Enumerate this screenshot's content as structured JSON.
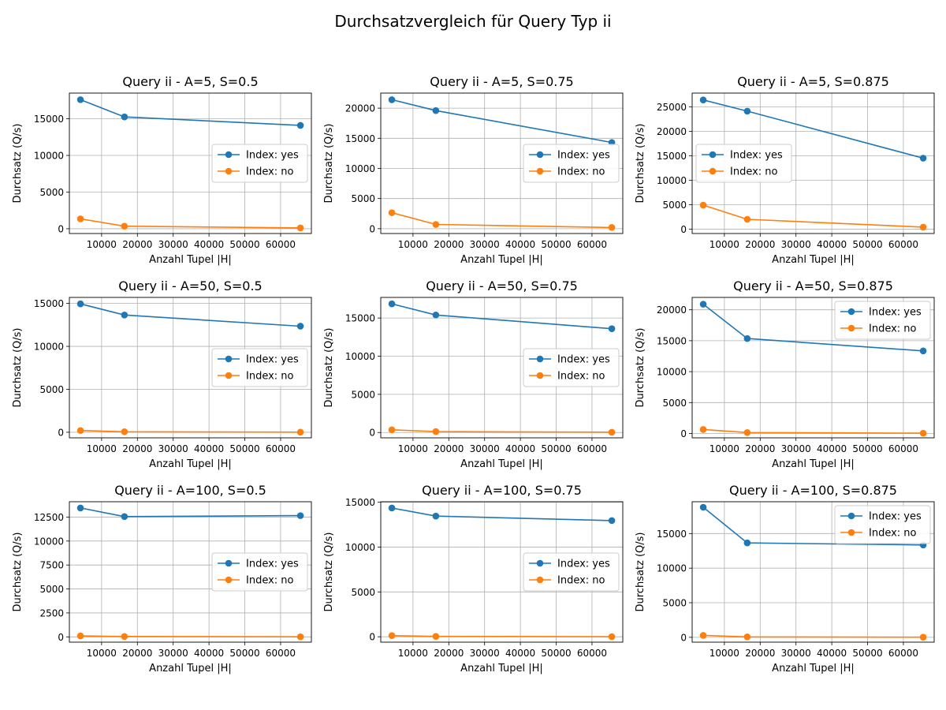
{
  "figure": {
    "title": "Durchsatzvergleich für Query Typ ii"
  },
  "colors": {
    "index_yes": "#1f77b4",
    "index_no": "#ff7f0e",
    "grid": "#b0b0b0"
  },
  "chart_data": [
    {
      "type": "line",
      "title": "Query ii - A=5, S=0.5",
      "xlabel": "Anzahl Tupel |H|",
      "ylabel": "Durchsatz (Q/s)",
      "x": [
        4096,
        16384,
        65536
      ],
      "xlim": [
        1000,
        68600
      ],
      "ylim": [
        -650,
        18500
      ],
      "xticks": [
        10000,
        20000,
        30000,
        40000,
        50000,
        60000
      ],
      "yticks": [
        0,
        5000,
        10000,
        15000
      ],
      "legend": "center-right",
      "grid": true,
      "series": [
        {
          "name": "Index: yes",
          "values": [
            17600,
            15250,
            14100
          ]
        },
        {
          "name": "Index: no",
          "values": [
            1350,
            350,
            110
          ]
        }
      ]
    },
    {
      "type": "line",
      "title": "Query ii - A=5, S=0.75",
      "xlabel": "Anzahl Tupel |H|",
      "ylabel": "Durchsatz (Q/s)",
      "x": [
        4096,
        16384,
        65536
      ],
      "xlim": [
        1000,
        68600
      ],
      "ylim": [
        -800,
        22500
      ],
      "xticks": [
        10000,
        20000,
        30000,
        40000,
        50000,
        60000
      ],
      "yticks": [
        0,
        5000,
        10000,
        15000,
        20000
      ],
      "legend": "center-right",
      "grid": true,
      "series": [
        {
          "name": "Index: yes",
          "values": [
            21400,
            19600,
            14300
          ]
        },
        {
          "name": "Index: no",
          "values": [
            2650,
            700,
            200
          ]
        }
      ]
    },
    {
      "type": "line",
      "title": "Query ii - A=5, S=0.875",
      "xlabel": "Anzahl Tupel |H|",
      "ylabel": "Durchsatz (Q/s)",
      "x": [
        4096,
        16384,
        65536
      ],
      "xlim": [
        1000,
        68600
      ],
      "ylim": [
        -900,
        27800
      ],
      "xticks": [
        10000,
        20000,
        30000,
        40000,
        50000,
        60000
      ],
      "yticks": [
        0,
        5000,
        10000,
        15000,
        20000,
        25000
      ],
      "legend": "center-left",
      "grid": true,
      "series": [
        {
          "name": "Index: yes",
          "values": [
            26400,
            24100,
            14500
          ]
        },
        {
          "name": "Index: no",
          "values": [
            4900,
            2000,
            400
          ]
        }
      ]
    },
    {
      "type": "line",
      "title": "Query ii - A=50, S=0.5",
      "xlabel": "Anzahl Tupel |H|",
      "ylabel": "Durchsatz (Q/s)",
      "x": [
        4096,
        16384,
        65536
      ],
      "xlim": [
        1000,
        68600
      ],
      "ylim": [
        -650,
        15700
      ],
      "xticks": [
        10000,
        20000,
        30000,
        40000,
        50000,
        60000
      ],
      "yticks": [
        0,
        5000,
        10000,
        15000
      ],
      "legend": "center-right",
      "grid": true,
      "series": [
        {
          "name": "Index: yes",
          "values": [
            14950,
            13650,
            12350
          ]
        },
        {
          "name": "Index: no",
          "values": [
            200,
            60,
            10
          ]
        }
      ]
    },
    {
      "type": "line",
      "title": "Query ii - A=50, S=0.75",
      "xlabel": "Anzahl Tupel |H|",
      "ylabel": "Durchsatz (Q/s)",
      "x": [
        4096,
        16384,
        65536
      ],
      "xlim": [
        1000,
        68600
      ],
      "ylim": [
        -700,
        17700
      ],
      "xticks": [
        10000,
        20000,
        30000,
        40000,
        50000,
        60000
      ],
      "yticks": [
        0,
        5000,
        10000,
        15000
      ],
      "legend": "center-right",
      "grid": true,
      "series": [
        {
          "name": "Index: yes",
          "values": [
            16850,
            15400,
            13600
          ]
        },
        {
          "name": "Index: no",
          "values": [
            350,
            120,
            30
          ]
        }
      ]
    },
    {
      "type": "line",
      "title": "Query ii - A=50, S=0.875",
      "xlabel": "Anzahl Tupel |H|",
      "ylabel": "Durchsatz (Q/s)",
      "x": [
        4096,
        16384,
        65536
      ],
      "xlim": [
        1000,
        68600
      ],
      "ylim": [
        -700,
        22000
      ],
      "xticks": [
        10000,
        20000,
        30000,
        40000,
        50000,
        60000
      ],
      "yticks": [
        0,
        5000,
        10000,
        15000,
        20000
      ],
      "legend": "upper-right",
      "grid": true,
      "series": [
        {
          "name": "Index: yes",
          "values": [
            20900,
            15350,
            13350
          ]
        },
        {
          "name": "Index: no",
          "values": [
            650,
            150,
            50
          ]
        }
      ]
    },
    {
      "type": "line",
      "title": "Query ii - A=100, S=0.5",
      "xlabel": "Anzahl Tupel |H|",
      "ylabel": "Durchsatz (Q/s)",
      "x": [
        4096,
        16384,
        65536
      ],
      "xlim": [
        1000,
        68600
      ],
      "ylim": [
        -550,
        14100
      ],
      "xticks": [
        10000,
        20000,
        30000,
        40000,
        50000,
        60000
      ],
      "yticks": [
        0,
        2500,
        5000,
        7500,
        10000,
        12500
      ],
      "legend": "center-right",
      "grid": true,
      "series": [
        {
          "name": "Index: yes",
          "values": [
            13450,
            12550,
            12650
          ]
        },
        {
          "name": "Index: no",
          "values": [
            100,
            40,
            10
          ]
        }
      ]
    },
    {
      "type": "line",
      "title": "Query ii - A=100, S=0.75",
      "xlabel": "Anzahl Tupel |H|",
      "ylabel": "Durchsatz (Q/s)",
      "x": [
        4096,
        16384,
        65536
      ],
      "xlim": [
        1000,
        68600
      ],
      "ylim": [
        -600,
        15050
      ],
      "xticks": [
        10000,
        20000,
        30000,
        40000,
        50000,
        60000
      ],
      "yticks": [
        0,
        5000,
        10000,
        15000
      ],
      "legend": "center-right",
      "grid": true,
      "series": [
        {
          "name": "Index: yes",
          "values": [
            14350,
            13450,
            12950
          ]
        },
        {
          "name": "Index: no",
          "values": [
            130,
            45,
            10
          ]
        }
      ]
    },
    {
      "type": "line",
      "title": "Query ii - A=100, S=0.875",
      "xlabel": "Anzahl Tupel |H|",
      "ylabel": "Durchsatz (Q/s)",
      "x": [
        4096,
        16384,
        65536
      ],
      "xlim": [
        1000,
        68600
      ],
      "ylim": [
        -700,
        19600
      ],
      "xticks": [
        10000,
        20000,
        30000,
        40000,
        50000,
        60000
      ],
      "yticks": [
        0,
        5000,
        10000,
        15000
      ],
      "legend": "upper-right",
      "grid": true,
      "series": [
        {
          "name": "Index: yes",
          "values": [
            18800,
            13650,
            13350
          ]
        },
        {
          "name": "Index: no",
          "values": [
            280,
            60,
            20
          ]
        }
      ]
    }
  ]
}
